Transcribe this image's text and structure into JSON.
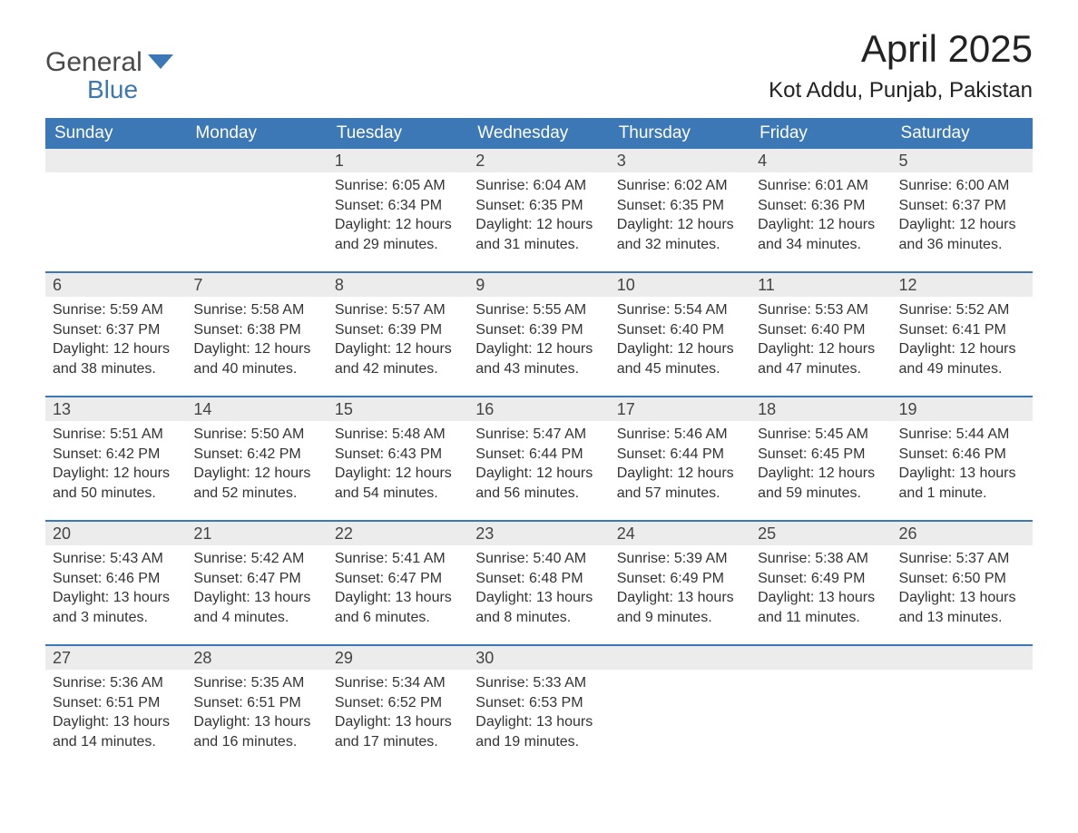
{
  "logo": {
    "line1": "General",
    "line2": "Blue"
  },
  "title": "April 2025",
  "location": "Kot Addu, Punjab, Pakistan",
  "colors": {
    "header_bg": "#3b78b5",
    "header_text": "#ffffff",
    "daynum_bg": "#ececec",
    "border": "#3b78b5",
    "body_text": "#333333",
    "logo_gray": "#4a4a4a",
    "logo_blue": "#3b78b5",
    "page_bg": "#ffffff"
  },
  "weekdays": [
    "Sunday",
    "Monday",
    "Tuesday",
    "Wednesday",
    "Thursday",
    "Friday",
    "Saturday"
  ],
  "weeks": [
    [
      {
        "n": "",
        "sunrise": "",
        "sunset": "",
        "daylight": ""
      },
      {
        "n": "",
        "sunrise": "",
        "sunset": "",
        "daylight": ""
      },
      {
        "n": "1",
        "sunrise": "Sunrise: 6:05 AM",
        "sunset": "Sunset: 6:34 PM",
        "daylight": "Daylight: 12 hours and 29 minutes."
      },
      {
        "n": "2",
        "sunrise": "Sunrise: 6:04 AM",
        "sunset": "Sunset: 6:35 PM",
        "daylight": "Daylight: 12 hours and 31 minutes."
      },
      {
        "n": "3",
        "sunrise": "Sunrise: 6:02 AM",
        "sunset": "Sunset: 6:35 PM",
        "daylight": "Daylight: 12 hours and 32 minutes."
      },
      {
        "n": "4",
        "sunrise": "Sunrise: 6:01 AM",
        "sunset": "Sunset: 6:36 PM",
        "daylight": "Daylight: 12 hours and 34 minutes."
      },
      {
        "n": "5",
        "sunrise": "Sunrise: 6:00 AM",
        "sunset": "Sunset: 6:37 PM",
        "daylight": "Daylight: 12 hours and 36 minutes."
      }
    ],
    [
      {
        "n": "6",
        "sunrise": "Sunrise: 5:59 AM",
        "sunset": "Sunset: 6:37 PM",
        "daylight": "Daylight: 12 hours and 38 minutes."
      },
      {
        "n": "7",
        "sunrise": "Sunrise: 5:58 AM",
        "sunset": "Sunset: 6:38 PM",
        "daylight": "Daylight: 12 hours and 40 minutes."
      },
      {
        "n": "8",
        "sunrise": "Sunrise: 5:57 AM",
        "sunset": "Sunset: 6:39 PM",
        "daylight": "Daylight: 12 hours and 42 minutes."
      },
      {
        "n": "9",
        "sunrise": "Sunrise: 5:55 AM",
        "sunset": "Sunset: 6:39 PM",
        "daylight": "Daylight: 12 hours and 43 minutes."
      },
      {
        "n": "10",
        "sunrise": "Sunrise: 5:54 AM",
        "sunset": "Sunset: 6:40 PM",
        "daylight": "Daylight: 12 hours and 45 minutes."
      },
      {
        "n": "11",
        "sunrise": "Sunrise: 5:53 AM",
        "sunset": "Sunset: 6:40 PM",
        "daylight": "Daylight: 12 hours and 47 minutes."
      },
      {
        "n": "12",
        "sunrise": "Sunrise: 5:52 AM",
        "sunset": "Sunset: 6:41 PM",
        "daylight": "Daylight: 12 hours and 49 minutes."
      }
    ],
    [
      {
        "n": "13",
        "sunrise": "Sunrise: 5:51 AM",
        "sunset": "Sunset: 6:42 PM",
        "daylight": "Daylight: 12 hours and 50 minutes."
      },
      {
        "n": "14",
        "sunrise": "Sunrise: 5:50 AM",
        "sunset": "Sunset: 6:42 PM",
        "daylight": "Daylight: 12 hours and 52 minutes."
      },
      {
        "n": "15",
        "sunrise": "Sunrise: 5:48 AM",
        "sunset": "Sunset: 6:43 PM",
        "daylight": "Daylight: 12 hours and 54 minutes."
      },
      {
        "n": "16",
        "sunrise": "Sunrise: 5:47 AM",
        "sunset": "Sunset: 6:44 PM",
        "daylight": "Daylight: 12 hours and 56 minutes."
      },
      {
        "n": "17",
        "sunrise": "Sunrise: 5:46 AM",
        "sunset": "Sunset: 6:44 PM",
        "daylight": "Daylight: 12 hours and 57 minutes."
      },
      {
        "n": "18",
        "sunrise": "Sunrise: 5:45 AM",
        "sunset": "Sunset: 6:45 PM",
        "daylight": "Daylight: 12 hours and 59 minutes."
      },
      {
        "n": "19",
        "sunrise": "Sunrise: 5:44 AM",
        "sunset": "Sunset: 6:46 PM",
        "daylight": "Daylight: 13 hours and 1 minute."
      }
    ],
    [
      {
        "n": "20",
        "sunrise": "Sunrise: 5:43 AM",
        "sunset": "Sunset: 6:46 PM",
        "daylight": "Daylight: 13 hours and 3 minutes."
      },
      {
        "n": "21",
        "sunrise": "Sunrise: 5:42 AM",
        "sunset": "Sunset: 6:47 PM",
        "daylight": "Daylight: 13 hours and 4 minutes."
      },
      {
        "n": "22",
        "sunrise": "Sunrise: 5:41 AM",
        "sunset": "Sunset: 6:47 PM",
        "daylight": "Daylight: 13 hours and 6 minutes."
      },
      {
        "n": "23",
        "sunrise": "Sunrise: 5:40 AM",
        "sunset": "Sunset: 6:48 PM",
        "daylight": "Daylight: 13 hours and 8 minutes."
      },
      {
        "n": "24",
        "sunrise": "Sunrise: 5:39 AM",
        "sunset": "Sunset: 6:49 PM",
        "daylight": "Daylight: 13 hours and 9 minutes."
      },
      {
        "n": "25",
        "sunrise": "Sunrise: 5:38 AM",
        "sunset": "Sunset: 6:49 PM",
        "daylight": "Daylight: 13 hours and 11 minutes."
      },
      {
        "n": "26",
        "sunrise": "Sunrise: 5:37 AM",
        "sunset": "Sunset: 6:50 PM",
        "daylight": "Daylight: 13 hours and 13 minutes."
      }
    ],
    [
      {
        "n": "27",
        "sunrise": "Sunrise: 5:36 AM",
        "sunset": "Sunset: 6:51 PM",
        "daylight": "Daylight: 13 hours and 14 minutes."
      },
      {
        "n": "28",
        "sunrise": "Sunrise: 5:35 AM",
        "sunset": "Sunset: 6:51 PM",
        "daylight": "Daylight: 13 hours and 16 minutes."
      },
      {
        "n": "29",
        "sunrise": "Sunrise: 5:34 AM",
        "sunset": "Sunset: 6:52 PM",
        "daylight": "Daylight: 13 hours and 17 minutes."
      },
      {
        "n": "30",
        "sunrise": "Sunrise: 5:33 AM",
        "sunset": "Sunset: 6:53 PM",
        "daylight": "Daylight: 13 hours and 19 minutes."
      },
      {
        "n": "",
        "sunrise": "",
        "sunset": "",
        "daylight": ""
      },
      {
        "n": "",
        "sunrise": "",
        "sunset": "",
        "daylight": ""
      },
      {
        "n": "",
        "sunrise": "",
        "sunset": "",
        "daylight": ""
      }
    ]
  ]
}
